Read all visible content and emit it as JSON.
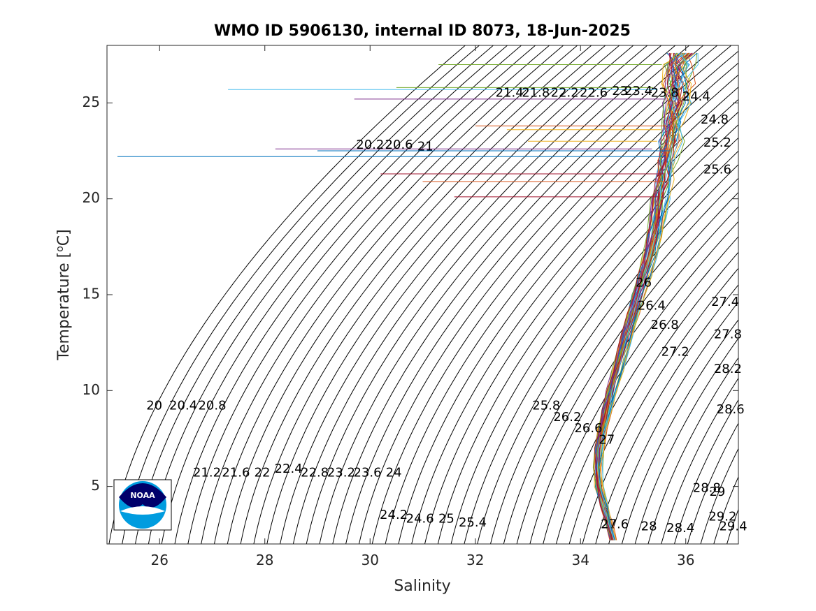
{
  "chart_data": {
    "type": "line",
    "title": "WMO ID 5906130, internal ID 8073, 18-Jun-2025",
    "xlabel": "Salinity",
    "ylabel_main": "Temperature [",
    "ylabel_sup": "o",
    "ylabel_end": "C]",
    "xlim": [
      25,
      37
    ],
    "ylim": [
      2,
      28
    ],
    "xticks": [
      26,
      28,
      30,
      32,
      34,
      36
    ],
    "yticks": [
      5,
      10,
      15,
      20,
      25
    ],
    "grid": false,
    "density_contours": {
      "description": "sigma-theta isopycnals",
      "step": 0.2,
      "range": [
        20.0,
        29.4
      ],
      "labels": [
        {
          "text": "20",
          "s": 25.9,
          "t": 9.2
        },
        {
          "text": "20.4",
          "s": 26.45,
          "t": 9.2
        },
        {
          "text": "20.8",
          "s": 27.0,
          "t": 9.2
        },
        {
          "text": "21.2",
          "s": 26.9,
          "t": 5.7
        },
        {
          "text": "21.6",
          "s": 27.45,
          "t": 5.7
        },
        {
          "text": "22",
          "s": 27.95,
          "t": 5.7
        },
        {
          "text": "22.4",
          "s": 28.45,
          "t": 5.9
        },
        {
          "text": "22.8",
          "s": 28.95,
          "t": 5.7
        },
        {
          "text": "23.2",
          "s": 29.45,
          "t": 5.7
        },
        {
          "text": "23.6",
          "s": 29.95,
          "t": 5.7
        },
        {
          "text": "24",
          "s": 30.45,
          "t": 5.7
        },
        {
          "text": "24.2",
          "s": 30.45,
          "t": 3.5
        },
        {
          "text": "24.6",
          "s": 30.95,
          "t": 3.3
        },
        {
          "text": "25",
          "s": 31.45,
          "t": 3.3
        },
        {
          "text": "25.4",
          "s": 31.95,
          "t": 3.1
        },
        {
          "text": "25.8",
          "s": 33.35,
          "t": 9.2
        },
        {
          "text": "26.2",
          "s": 33.75,
          "t": 8.6
        },
        {
          "text": "26.6",
          "s": 34.15,
          "t": 8.0
        },
        {
          "text": "27",
          "s": 34.5,
          "t": 7.4
        },
        {
          "text": "27.6",
          "s": 34.65,
          "t": 3.0
        },
        {
          "text": "28",
          "s": 35.3,
          "t": 2.9
        },
        {
          "text": "28.4",
          "s": 35.9,
          "t": 2.8
        },
        {
          "text": "28.8",
          "s": 36.4,
          "t": 4.9
        },
        {
          "text": "29",
          "s": 36.6,
          "t": 4.7
        },
        {
          "text": "29.2",
          "s": 36.7,
          "t": 3.4
        },
        {
          "text": "29.4",
          "s": 36.9,
          "t": 2.9
        },
        {
          "text": "20.2",
          "s": 30.0,
          "t": 22.8
        },
        {
          "text": "20.6",
          "s": 30.55,
          "t": 22.8
        },
        {
          "text": "21",
          "s": 31.05,
          "t": 22.7
        },
        {
          "text": "21.4",
          "s": 32.65,
          "t": 25.5
        },
        {
          "text": "21.8",
          "s": 33.15,
          "t": 25.5
        },
        {
          "text": "22.2",
          "s": 33.7,
          "t": 25.5
        },
        {
          "text": "22.6",
          "s": 34.25,
          "t": 25.5
        },
        {
          "text": "23",
          "s": 34.75,
          "t": 25.6
        },
        {
          "text": "23.4",
          "s": 35.1,
          "t": 25.6
        },
        {
          "text": "23.8",
          "s": 35.6,
          "t": 25.5
        },
        {
          "text": "24.4",
          "s": 36.2,
          "t": 25.3
        },
        {
          "text": "24.8",
          "s": 36.55,
          "t": 24.1
        },
        {
          "text": "25.2",
          "s": 36.6,
          "t": 22.9
        },
        {
          "text": "25.6",
          "s": 36.6,
          "t": 21.5
        },
        {
          "text": "26",
          "s": 35.2,
          "t": 15.6
        },
        {
          "text": "26.4",
          "s": 35.35,
          "t": 14.4
        },
        {
          "text": "26.8",
          "s": 35.6,
          "t": 13.4
        },
        {
          "text": "27.2",
          "s": 35.8,
          "t": 12.0
        },
        {
          "text": "27.4",
          "s": 36.75,
          "t": 14.6
        },
        {
          "text": "27.8",
          "s": 36.8,
          "t": 12.9
        },
        {
          "text": "28.2",
          "s": 36.8,
          "t": 11.1
        },
        {
          "text": "28.6",
          "s": 36.85,
          "t": 9.0
        }
      ]
    },
    "profile_envelope": [
      {
        "t": 2.2,
        "s": 34.62
      },
      {
        "t": 3.0,
        "s": 34.55
      },
      {
        "t": 4.0,
        "s": 34.45
      },
      {
        "t": 5.0,
        "s": 34.35
      },
      {
        "t": 6.0,
        "s": 34.33
      },
      {
        "t": 7.0,
        "s": 34.36
      },
      {
        "t": 8.0,
        "s": 34.42
      },
      {
        "t": 9.0,
        "s": 34.5
      },
      {
        "t": 10.0,
        "s": 34.6
      },
      {
        "t": 11.0,
        "s": 34.7
      },
      {
        "t": 12.0,
        "s": 34.8
      },
      {
        "t": 13.0,
        "s": 34.9
      },
      {
        "t": 14.0,
        "s": 35.0
      },
      {
        "t": 15.0,
        "s": 35.1
      },
      {
        "t": 16.0,
        "s": 35.22
      },
      {
        "t": 17.0,
        "s": 35.32
      },
      {
        "t": 18.0,
        "s": 35.4
      },
      {
        "t": 19.0,
        "s": 35.47
      },
      {
        "t": 20.0,
        "s": 35.53
      },
      {
        "t": 21.0,
        "s": 35.6
      },
      {
        "t": 22.0,
        "s": 35.66
      },
      {
        "t": 23.0,
        "s": 35.72
      },
      {
        "t": 24.0,
        "s": 35.78
      },
      {
        "t": 25.0,
        "s": 35.82
      },
      {
        "t": 26.0,
        "s": 35.86
      },
      {
        "t": 27.0,
        "s": 35.9
      },
      {
        "t": 27.6,
        "s": 35.95
      }
    ],
    "surface_spikes": [
      {
        "t": 27.0,
        "s_min": 31.3,
        "color": "#77AC30"
      },
      {
        "t": 25.7,
        "s_min": 27.3,
        "color": "#4DBEEE"
      },
      {
        "t": 25.8,
        "s_min": 30.5,
        "color": "#77AC30"
      },
      {
        "t": 25.2,
        "s_min": 29.7,
        "color": "#7E2F8E"
      },
      {
        "t": 23.8,
        "s_min": 32.0,
        "color": "#D95319"
      },
      {
        "t": 23.6,
        "s_min": 32.6,
        "color": "#EDB120"
      },
      {
        "t": 23.0,
        "s_min": 33.0,
        "color": "#EDB120"
      },
      {
        "t": 22.6,
        "s_min": 28.2,
        "color": "#7E2F8E"
      },
      {
        "t": 22.5,
        "s_min": 29.0,
        "color": "#0072BD"
      },
      {
        "t": 22.2,
        "s_min": 25.2,
        "color": "#0072BD"
      },
      {
        "t": 21.3,
        "s_min": 30.2,
        "color": "#A2142F"
      },
      {
        "t": 20.9,
        "s_min": 31.0,
        "color": "#D95319"
      },
      {
        "t": 20.1,
        "s_min": 31.6,
        "color": "#A2142F"
      }
    ],
    "series_colors": [
      "#0072BD",
      "#D95319",
      "#EDB120",
      "#7E2F8E",
      "#77AC30",
      "#4DBEEE",
      "#A2142F"
    ],
    "logo": {
      "text": "NOAA",
      "primary": "#00006b",
      "secondary": "#009cdf"
    }
  }
}
